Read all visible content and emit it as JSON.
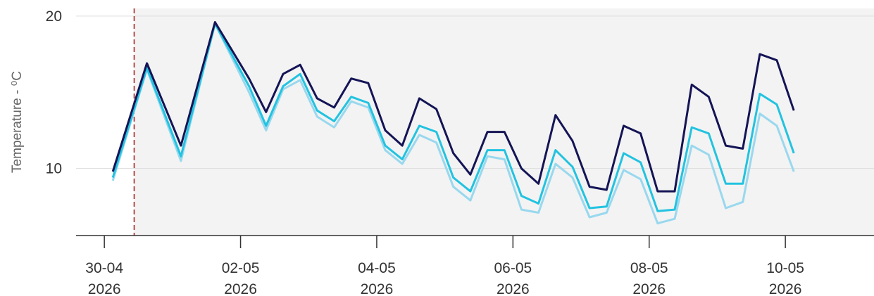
{
  "chart_data": {
    "type": "line",
    "title": "",
    "xlabel": "",
    "ylabel": "Temperature - ⁰C",
    "ylim": [
      5.6,
      20.5
    ],
    "xlim": [
      "2026-04-29T18:30",
      "2026-05-11T06:00"
    ],
    "y_ticks": [
      10,
      20
    ],
    "x_ticks": [
      {
        "date": "2026-04-30",
        "label": [
          "30-04",
          "2026"
        ]
      },
      {
        "date": "2026-05-02",
        "label": [
          "02-05",
          "2026"
        ]
      },
      {
        "date": "2026-05-04",
        "label": [
          "04-05",
          "2026"
        ]
      },
      {
        "date": "2026-05-06",
        "label": [
          "06-05",
          "2026"
        ]
      },
      {
        "date": "2026-05-08",
        "label": [
          "08-05",
          "2026"
        ]
      },
      {
        "date": "2026-05-10",
        "label": [
          "10-05",
          "2026"
        ]
      }
    ],
    "grid": true,
    "plot_background": "#f3f3f3",
    "marker_line": {
      "x": "2026-04-30T10:30",
      "color": "#a31a1a",
      "style": "dashed"
    },
    "x": [
      "2026-04-30T03:00",
      "2026-04-30T15:00",
      "2026-05-01T03:00",
      "2026-05-01T15:00",
      "2026-05-02T03:00",
      "2026-05-02T09:00",
      "2026-05-02T15:00",
      "2026-05-02T21:00",
      "2026-05-03T03:00",
      "2026-05-03T09:00",
      "2026-05-03T15:00",
      "2026-05-03T21:00",
      "2026-05-04T03:00",
      "2026-05-04T09:00",
      "2026-05-04T15:00",
      "2026-05-04T21:00",
      "2026-05-05T03:00",
      "2026-05-05T09:00",
      "2026-05-05T15:00",
      "2026-05-05T21:00",
      "2026-05-06T03:00",
      "2026-05-06T09:00",
      "2026-05-06T15:00",
      "2026-05-06T21:00",
      "2026-05-07T03:00",
      "2026-05-07T09:00",
      "2026-05-07T15:00",
      "2026-05-07T21:00",
      "2026-05-08T03:00",
      "2026-05-08T09:00",
      "2026-05-08T15:00",
      "2026-05-08T21:00",
      "2026-05-09T03:00",
      "2026-05-09T09:00",
      "2026-05-09T15:00",
      "2026-05-09T21:00",
      "2026-05-10T03:00"
    ],
    "series": [
      {
        "color": "#99d8ee",
        "values": [
          9.2,
          16.5,
          10.5,
          19.5,
          15.0,
          12.5,
          15.2,
          15.8,
          13.4,
          12.7,
          14.4,
          14.0,
          11.2,
          10.3,
          12.2,
          11.7,
          8.8,
          7.9,
          10.8,
          10.6,
          7.3,
          7.1,
          10.3,
          9.4,
          6.8,
          7.1,
          9.9,
          9.3,
          6.4,
          6.7,
          11.5,
          10.9,
          7.4,
          7.8,
          13.6,
          12.8,
          9.8
        ]
      },
      {
        "color": "#22c3e0",
        "values": [
          9.4,
          16.6,
          10.8,
          19.5,
          15.4,
          12.8,
          15.4,
          16.2,
          13.8,
          13.1,
          14.7,
          14.3,
          11.5,
          10.6,
          12.8,
          12.4,
          9.4,
          8.5,
          11.2,
          11.2,
          8.2,
          7.7,
          11.2,
          10.1,
          7.4,
          7.5,
          11.0,
          10.4,
          7.2,
          7.3,
          12.7,
          12.3,
          9.0,
          9.0,
          14.9,
          14.2,
          11.0
        ]
      },
      {
        "color": "#141456",
        "values": [
          9.8,
          16.9,
          11.5,
          19.6,
          15.9,
          13.7,
          16.2,
          16.8,
          14.6,
          14.0,
          15.9,
          15.6,
          12.5,
          11.5,
          14.6,
          13.9,
          11.0,
          9.6,
          12.4,
          12.4,
          10.0,
          9.0,
          13.5,
          11.8,
          8.8,
          8.6,
          12.8,
          12.3,
          8.5,
          8.5,
          15.5,
          14.7,
          11.5,
          11.3,
          17.5,
          17.1,
          13.8
        ]
      }
    ]
  }
}
